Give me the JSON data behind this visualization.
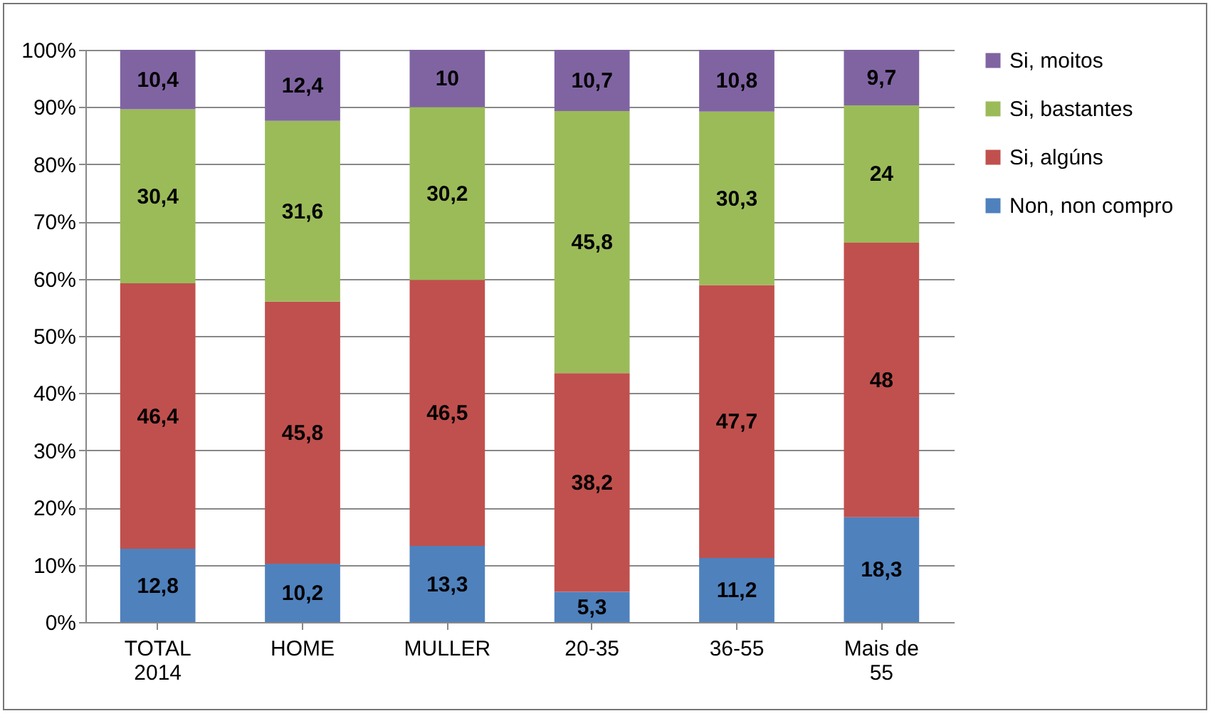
{
  "chart_data": {
    "type": "bar",
    "stacked": true,
    "categories": [
      "TOTAL\n2014",
      "HOME",
      "MULLER",
      "20-35",
      "36-55",
      "Mais de\n55"
    ],
    "series": [
      {
        "name": "Non, non compro",
        "color": "#4f81bd",
        "values": [
          12.8,
          10.2,
          13.3,
          5.3,
          11.2,
          18.3
        ],
        "value_labels": [
          "12,8",
          "10,2",
          "13,3",
          "5,3",
          "11,2",
          "18,3"
        ]
      },
      {
        "name": "Si, algúns",
        "color": "#c0504d",
        "values": [
          46.4,
          45.8,
          46.5,
          38.2,
          47.7,
          48
        ],
        "value_labels": [
          "46,4",
          "45,8",
          "46,5",
          "38,2",
          "47,7",
          "48"
        ]
      },
      {
        "name": "Si, bastantes",
        "color": "#9bbb59",
        "values": [
          30.4,
          31.6,
          30.2,
          45.8,
          30.3,
          24
        ],
        "value_labels": [
          "30,4",
          "31,6",
          "30,2",
          "45,8",
          "30,3",
          "24"
        ]
      },
      {
        "name": "Si, moitos",
        "color": "#8064a2",
        "values": [
          10.4,
          12.4,
          10,
          10.7,
          10.8,
          9.7
        ],
        "value_labels": [
          "10,4",
          "12,4",
          "10",
          "10,7",
          "10,8",
          "9,7"
        ]
      }
    ],
    "ylim": [
      0,
      100
    ],
    "yticks": [
      {
        "value": 0,
        "label": "0%"
      },
      {
        "value": 10,
        "label": "10%"
      },
      {
        "value": 20,
        "label": "20%"
      },
      {
        "value": 30,
        "label": "30%"
      },
      {
        "value": 40,
        "label": "40%"
      },
      {
        "value": 50,
        "label": "50%"
      },
      {
        "value": 60,
        "label": "60%"
      },
      {
        "value": 70,
        "label": "70%"
      },
      {
        "value": 80,
        "label": "80%"
      },
      {
        "value": 90,
        "label": "90%"
      },
      {
        "value": 100,
        "label": "100%"
      }
    ],
    "grid": "y",
    "legend": "right"
  }
}
